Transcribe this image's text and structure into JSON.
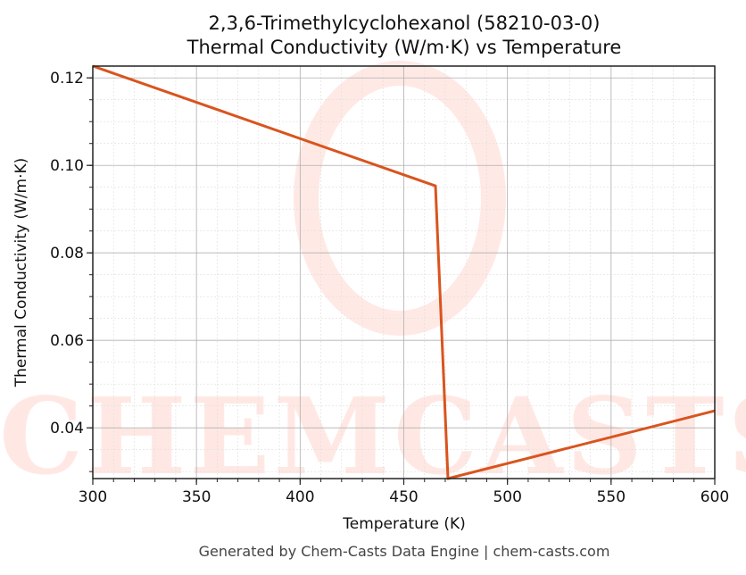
{
  "chart_data": {
    "type": "line",
    "title": "2,3,6-Trimethylcyclohexanol (58210-03-0)",
    "subtitle": "Thermal Conductivity (W/m·K) vs Temperature",
    "xlabel": "Temperature (K)",
    "ylabel": "Thermal Conductivity (W/m·K)",
    "xlim": [
      300,
      600
    ],
    "ylim": [
      0.0284,
      0.1227
    ],
    "xticks": [
      300,
      350,
      400,
      450,
      500,
      550,
      600
    ],
    "yticks": [
      0.04,
      0.06,
      0.08,
      0.1,
      0.12
    ],
    "ytick_labels": [
      "0.04",
      "0.06",
      "0.08",
      "0.10",
      "0.12"
    ],
    "grid": true,
    "legend": null,
    "series": [
      {
        "name": "Thermal Conductivity",
        "color": "#d9541e",
        "x": [
          300,
          465.3,
          471.3,
          600
        ],
        "y": [
          0.1227,
          0.0953,
          0.0284,
          0.0439
        ]
      }
    ]
  },
  "header": {
    "title": "2,3,6-Trimethylcyclohexanol (58210-03-0)",
    "subtitle": "Thermal Conductivity (W/m·K) vs Temperature"
  },
  "axes": {
    "xlabel": "Temperature (K)",
    "ylabel": "Thermal Conductivity (W/m·K)"
  },
  "watermark": "CHEMCASTS",
  "footer": "Generated by Chem-Casts Data Engine | chem-casts.com"
}
